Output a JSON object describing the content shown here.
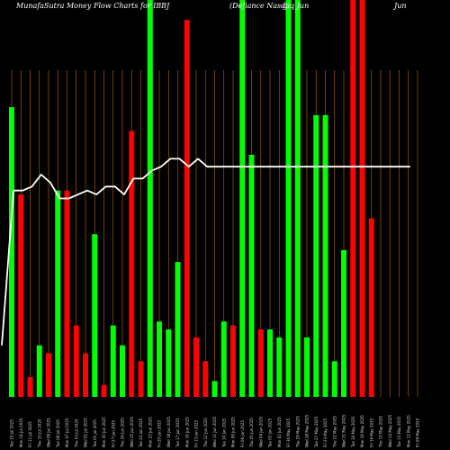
{
  "chart_data": {
    "type": "bar",
    "title_left": "MunafaSutra  Money Flow  Charts for IBBJ",
    "title_right": "(Defiance   Nasdaq Jun",
    "title_edge": "Jun",
    "title_edge_overlap": "g",
    "categories": [
      "Tue 15 Jul 2025",
      "Mon 14 Jul 2025",
      "Fri 11 Jul 2025",
      "Thu 10 Jul 2025",
      "Wed 09 Jul 2025",
      "Tue 08 Jul 2025",
      "Mon 07 Jul 2025",
      "Thu 03 Jul 2025",
      "Wed 02 Jul 2025",
      "Tue 01 Jul 2025",
      "Mon 30 Jun 2025",
      "Fri 27 Jun 2025",
      "Thu 26 Jun 2025",
      "Wed 25 Jun 2025",
      "Tue 24 Jun 2025",
      "Mon 23 Jun 2025",
      "Fri 20 Jun 2025",
      "Wed 18 Jun 2025",
      "Tue 17 Jun 2025",
      "Mon 16 Jun 2025",
      "Fri 13 Jun 2025",
      "Thu 12 Jun 2025",
      "Wed 11 Jun 2025",
      "Tue 10 Jun 2025",
      "Mon 09 Jun 2025",
      "Fri 06 Jun 2025",
      "Thu 05 Jun 2025",
      "Wed 04 Jun 2025",
      "Tue 03 Jun 2025",
      "Mon 02 Jun 2025",
      "Fri 30 May 2025",
      "Thu 29 May 2025",
      "Wed 28 May 2025",
      "Tue 27 May 2025",
      "Fri 23 May 2025",
      "Thu 22 May 2025",
      "Wed 21 May 2025",
      "Tue 20 May 2025",
      "Mon 19 May 2025",
      "Fri 16 May 2025",
      "Thu 15 May 2025",
      "Wed 14 May 2025",
      "Tue 13 May 2025",
      "Mon 12 May 2025",
      "Fri 09 May 2025"
    ],
    "bar_colors": [
      "green",
      "red",
      "red",
      "green",
      "red",
      "green",
      "red",
      "red",
      "red",
      "green",
      "red",
      "green",
      "green",
      "red",
      "red",
      "green",
      "green",
      "green",
      "green",
      "red",
      "red",
      "red",
      "green",
      "green",
      "red",
      "green",
      "green",
      "red",
      "green",
      "green",
      "green",
      "green",
      "green",
      "green",
      "green",
      "green",
      "green",
      "red",
      "red",
      "red",
      "green",
      "green",
      "green",
      "green",
      "green"
    ],
    "values": [
      0.73,
      0.51,
      0.05,
      0.13,
      0.11,
      0.52,
      0.52,
      0.18,
      0.11,
      0.41,
      0.03,
      0.18,
      0.13,
      0.67,
      0.09,
      1.0,
      0.19,
      0.17,
      0.34,
      0.95,
      0.15,
      0.09,
      0.04,
      0.19,
      0.18,
      1.0,
      0.61,
      0.17,
      0.17,
      0.15,
      1.0,
      1.0,
      0.15,
      0.71,
      0.71,
      0.09,
      0.37,
      1.0,
      1.0,
      0.45,
      0,
      0,
      0,
      0,
      0
    ],
    "line_values": [
      0.13,
      0.52,
      0.52,
      0.53,
      0.56,
      0.54,
      0.5,
      0.5,
      0.51,
      0.52,
      0.51,
      0.53,
      0.53,
      0.51,
      0.55,
      0.55,
      0.57,
      0.58,
      0.6,
      0.6,
      0.58,
      0.6,
      0.58,
      0.58,
      0.58,
      0.58,
      0.58,
      0.58,
      0.58,
      0.58,
      0.58,
      0.58,
      0.58,
      0.58,
      0.58,
      0.58,
      0.58,
      0.58,
      0.58,
      0.58,
      0.58,
      0.58,
      0.58,
      0.58,
      0.58
    ],
    "ylim": [
      0,
      1
    ],
    "grid": "vertical",
    "colors": {
      "background": "#000000",
      "green": "#00ff00",
      "red": "#ff0000",
      "grid": "#b86a00",
      "line": "#ffffff",
      "text": "#ffffff"
    }
  }
}
